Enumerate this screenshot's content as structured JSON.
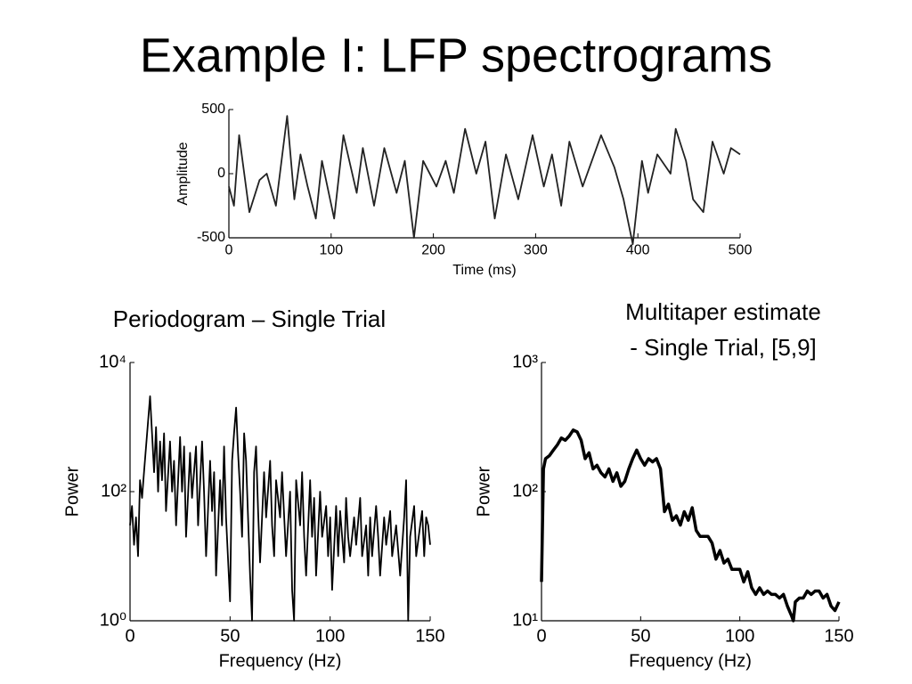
{
  "title": "Example I:  LFP spectrograms",
  "chart_data": [
    {
      "type": "line",
      "xlabel": "Time (ms)",
      "ylabel": "Amplitude",
      "x": [
        0,
        5,
        10,
        20,
        30,
        37,
        46,
        57,
        64,
        70,
        77,
        85,
        91,
        103,
        112,
        125,
        131,
        142,
        152,
        164,
        172,
        181,
        190,
        203,
        212,
        220,
        231,
        242,
        251,
        260,
        271,
        283,
        297,
        308,
        316,
        325,
        333,
        346,
        364,
        377,
        386,
        395,
        404,
        410,
        419,
        432,
        437,
        447,
        454,
        464,
        473,
        484,
        491,
        500
      ],
      "values": [
        -100,
        -250,
        300,
        -300,
        -50,
        0,
        -250,
        450,
        -200,
        150,
        -100,
        -350,
        100,
        -350,
        300,
        -150,
        200,
        -250,
        200,
        -150,
        100,
        -500,
        100,
        -100,
        100,
        -150,
        350,
        0,
        250,
        -350,
        150,
        -200,
        300,
        -100,
        150,
        -250,
        250,
        -100,
        300,
        50,
        -200,
        -550,
        100,
        -150,
        150,
        0,
        350,
        100,
        -200,
        -300,
        250,
        0,
        200,
        150
      ],
      "color": "#222222",
      "xlim": [
        0,
        500
      ],
      "ylim": [
        -500,
        500
      ],
      "xticks": [
        0,
        100,
        200,
        300,
        400,
        500
      ],
      "yticks": [
        -500,
        0,
        500
      ]
    },
    {
      "type": "line",
      "title": "Periodogram – Single Trial",
      "xlabel": "Frequency (Hz)",
      "ylabel": "Power",
      "x": [
        0,
        1,
        2,
        3,
        4,
        5,
        6,
        7,
        8,
        10,
        11,
        12,
        13,
        14,
        15,
        16,
        17,
        18,
        20,
        21,
        22,
        23,
        25,
        26,
        27,
        28,
        30,
        31,
        33,
        34,
        36,
        37,
        38,
        40,
        41,
        42,
        43,
        45,
        46,
        47,
        48,
        50,
        51,
        52,
        53,
        54,
        55,
        56,
        57,
        58,
        60,
        61,
        62,
        63,
        64,
        65,
        67,
        68,
        70,
        71,
        72,
        73,
        75,
        76,
        78,
        80,
        81,
        82,
        83,
        85,
        86,
        87,
        88,
        90,
        91,
        92,
        93,
        95,
        96,
        98,
        99,
        100,
        101,
        103,
        104,
        105,
        107,
        108,
        109,
        110,
        112,
        113,
        115,
        116,
        118,
        119,
        120,
        121,
        123,
        124,
        125,
        127,
        128,
        130,
        131,
        133,
        135,
        137,
        138,
        139,
        140,
        142,
        143,
        145,
        146,
        147,
        148,
        149,
        150
      ],
      "values": [
        30,
        60,
        15,
        40,
        10,
        150,
        80,
        200,
        500,
        3000,
        800,
        200,
        1000,
        100,
        600,
        150,
        800,
        50,
        600,
        100,
        300,
        30,
        700,
        100,
        500,
        20,
        400,
        80,
        500,
        30,
        600,
        100,
        10,
        300,
        50,
        200,
        5,
        150,
        30,
        500,
        40,
        2,
        300,
        800,
        2000,
        400,
        100,
        20,
        800,
        300,
        5,
        1,
        200,
        500,
        50,
        8,
        200,
        40,
        300,
        30,
        10,
        150,
        40,
        200,
        10,
        100,
        3,
        1,
        150,
        30,
        200,
        20,
        5,
        150,
        20,
        80,
        5,
        100,
        20,
        60,
        10,
        40,
        3,
        60,
        10,
        50,
        8,
        80,
        20,
        10,
        40,
        15,
        80,
        10,
        30,
        5,
        40,
        10,
        60,
        20,
        5,
        40,
        15,
        50,
        10,
        30,
        5,
        40,
        150,
        1,
        20,
        60,
        10,
        30,
        50,
        10,
        40,
        30,
        15
      ],
      "color": "#000000",
      "log_y": true,
      "xlim": [
        0,
        150
      ],
      "ylim": [
        1,
        10000
      ],
      "xticks": [
        0,
        50,
        100,
        150
      ],
      "yticks": [
        {
          "value": 1,
          "label": "10⁰"
        },
        {
          "value": 100,
          "label": "10²"
        },
        {
          "value": 10000,
          "label": "10⁴"
        }
      ]
    },
    {
      "type": "line",
      "title": [
        "Multitaper estimate",
        "- Single Trial, [5,9]"
      ],
      "xlabel": "Frequency (Hz)",
      "ylabel": "Power",
      "x": [
        0,
        1,
        2,
        4,
        6,
        8,
        10,
        12,
        14,
        16,
        18,
        20,
        22,
        24,
        26,
        28,
        30,
        32,
        34,
        36,
        38,
        40,
        42,
        44,
        46,
        48,
        50,
        52,
        54,
        56,
        58,
        60,
        62,
        64,
        66,
        68,
        70,
        72,
        74,
        76,
        78,
        80,
        82,
        84,
        86,
        88,
        90,
        92,
        94,
        96,
        98,
        100,
        102,
        104,
        106,
        108,
        110,
        112,
        114,
        116,
        118,
        120,
        122,
        124,
        126,
        127,
        128,
        130,
        132,
        134,
        136,
        138,
        140,
        142,
        144,
        146,
        148,
        150
      ],
      "values": [
        20,
        150,
        180,
        190,
        210,
        230,
        260,
        250,
        270,
        300,
        290,
        250,
        180,
        200,
        150,
        160,
        140,
        130,
        150,
        120,
        140,
        110,
        120,
        150,
        180,
        210,
        180,
        160,
        180,
        170,
        180,
        150,
        70,
        80,
        60,
        65,
        55,
        70,
        60,
        75,
        50,
        45,
        45,
        45,
        40,
        30,
        35,
        28,
        30,
        25,
        25,
        25,
        20,
        24,
        18,
        16,
        18,
        16,
        17,
        16,
        16,
        15,
        16,
        13,
        11,
        10,
        14,
        15,
        15,
        17,
        16,
        17,
        17,
        15,
        16,
        13,
        12,
        14
      ],
      "color": "#000000",
      "line_width": 3.5,
      "log_y": true,
      "xlim": [
        0,
        150
      ],
      "ylim": [
        10,
        1000
      ],
      "xticks": [
        0,
        50,
        100,
        150
      ],
      "yticks": [
        {
          "value": 10,
          "label": "10¹"
        },
        {
          "value": 100,
          "label": "10²"
        },
        {
          "value": 1000,
          "label": "10³"
        }
      ]
    }
  ]
}
